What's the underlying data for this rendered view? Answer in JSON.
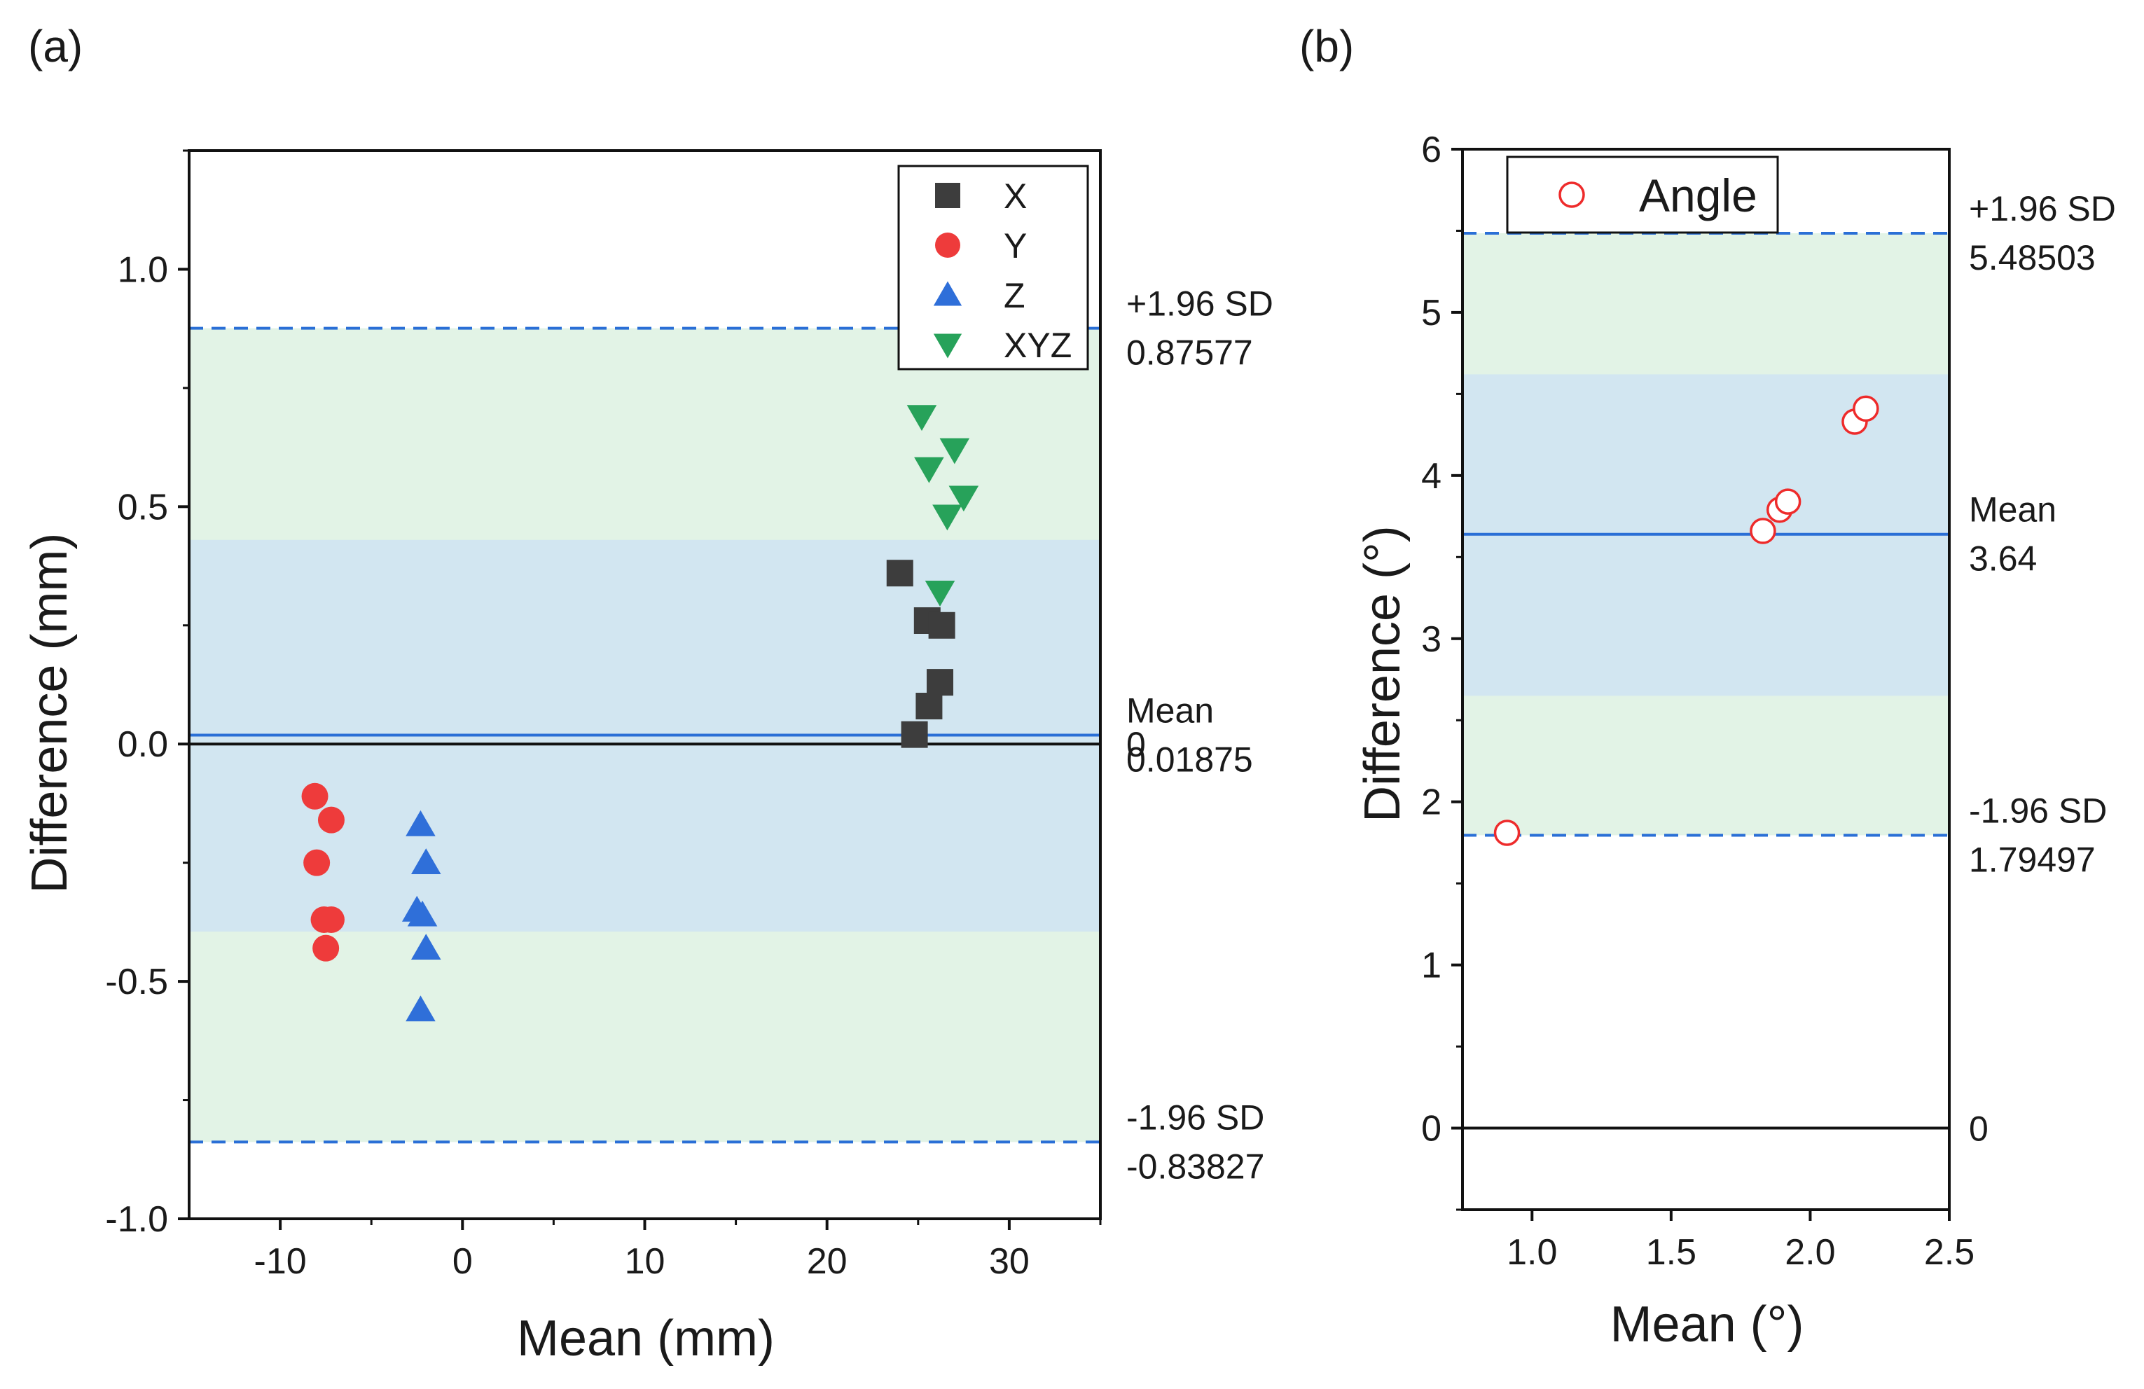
{
  "chart_data": [
    {
      "panel_label": "(a)",
      "type": "scatter",
      "chart_kind": "Bland-Altman",
      "xlabel": "Mean (mm)",
      "ylabel": "Difference (mm)",
      "xlim": [
        -15,
        35
      ],
      "ylim": [
        -1.0,
        1.25
      ],
      "xticks": [
        -10,
        0,
        10,
        20,
        30
      ],
      "xtick_labels": [
        "-10",
        "0",
        "10",
        "20",
        "30"
      ],
      "yticks": [
        -1.0,
        -0.5,
        0.0,
        0.5,
        1.0
      ],
      "ytick_labels": [
        "-1.0",
        "-0.5",
        "0.0",
        "0.5",
        "1.0"
      ],
      "bands": [
        {
          "name": "loa-band",
          "from": -0.83827,
          "to": 0.87577,
          "color": "#e2f3e6"
        },
        {
          "name": "ci-band",
          "from": -0.395,
          "to": 0.43,
          "color": "#d2e6f1"
        }
      ],
      "reference_lines": [
        {
          "name": "upper-loa",
          "value": 0.87577,
          "style": "dashed",
          "color": "#2a6fd6",
          "label_top": "+1.96 SD",
          "label_bottom": "0.87577"
        },
        {
          "name": "mean",
          "value": 0.01875,
          "style": "solid",
          "color": "#2a6fd6",
          "label_top": "Mean",
          "label_bottom": "0.01875"
        },
        {
          "name": "zero",
          "value": 0,
          "style": "solid",
          "color": "#111111",
          "label_top": "",
          "label_bottom": "0"
        },
        {
          "name": "lower-loa",
          "value": -0.83827,
          "style": "dashed",
          "color": "#2a6fd6",
          "label_top": "-1.96 SD",
          "label_bottom": "-0.83827"
        }
      ],
      "legend": {
        "position": "top-right"
      },
      "series": [
        {
          "name": "X",
          "marker": "square",
          "color": "#3d3d3d",
          "points": [
            [
              24,
              0.36
            ],
            [
              25.5,
              0.26
            ],
            [
              26.3,
              0.25
            ],
            [
              26.2,
              0.13
            ],
            [
              25.6,
              0.08
            ],
            [
              24.8,
              0.02
            ]
          ]
        },
        {
          "name": "Y",
          "marker": "circle",
          "color": "#ee3b3b",
          "points": [
            [
              -8.1,
              -0.11
            ],
            [
              -7.2,
              -0.16
            ],
            [
              -8,
              -0.25
            ],
            [
              -7.6,
              -0.37
            ],
            [
              -7.2,
              -0.37
            ],
            [
              -7.5,
              -0.43
            ]
          ]
        },
        {
          "name": "Z",
          "marker": "triangle-up",
          "color": "#2f6fd9",
          "points": [
            [
              -2.3,
              -0.17
            ],
            [
              -2.0,
              -0.25
            ],
            [
              -2.5,
              -0.35
            ],
            [
              -2.2,
              -0.36
            ],
            [
              -2.0,
              -0.43
            ],
            [
              -2.3,
              -0.56
            ]
          ]
        },
        {
          "name": "XYZ",
          "marker": "triangle-down",
          "color": "#27a25a",
          "points": [
            [
              25.2,
              0.69
            ],
            [
              27.0,
              0.62
            ],
            [
              25.6,
              0.58
            ],
            [
              27.5,
              0.52
            ],
            [
              26.6,
              0.48
            ],
            [
              26.2,
              0.32
            ]
          ]
        }
      ]
    },
    {
      "panel_label": "(b)",
      "type": "scatter",
      "chart_kind": "Bland-Altman",
      "xlabel": "Mean (°)",
      "ylabel": "Difference (°)",
      "xlim": [
        0.75,
        2.5
      ],
      "ylim": [
        -0.5,
        6.0
      ],
      "xticks": [
        1.0,
        1.5,
        2.0,
        2.5
      ],
      "xtick_labels": [
        "1.0",
        "1.5",
        "2.0",
        "2.5"
      ],
      "yticks": [
        0,
        1,
        2,
        3,
        4,
        5,
        6
      ],
      "ytick_labels": [
        "0",
        "1",
        "2",
        "3",
        "4",
        "5",
        "6"
      ],
      "bands": [
        {
          "name": "loa-band",
          "from": 1.79497,
          "to": 5.48503,
          "color": "#e2f3e6"
        },
        {
          "name": "ci-band",
          "from": 2.65,
          "to": 4.62,
          "color": "#d2e6f1"
        }
      ],
      "reference_lines": [
        {
          "name": "upper-loa",
          "value": 5.48503,
          "style": "dashed",
          "color": "#2a6fd6",
          "label_top": "+1.96 SD",
          "label_bottom": "5.48503"
        },
        {
          "name": "mean",
          "value": 3.64,
          "style": "solid",
          "color": "#2a6fd6",
          "label_top": "Mean",
          "label_bottom": "3.64"
        },
        {
          "name": "zero",
          "value": 0,
          "style": "solid",
          "color": "#111111",
          "label_top": "",
          "label_bottom": "0"
        },
        {
          "name": "lower-loa",
          "value": 1.79497,
          "style": "dashed",
          "color": "#2a6fd6",
          "label_top": "-1.96 SD",
          "label_bottom": "1.79497"
        }
      ],
      "legend": {
        "position": "top-left"
      },
      "series": [
        {
          "name": "Angle",
          "marker": "open-circle",
          "color": "#ee2b2b",
          "points": [
            [
              0.91,
              1.81
            ],
            [
              1.83,
              3.66
            ],
            [
              1.89,
              3.79
            ],
            [
              1.92,
              3.84
            ],
            [
              2.16,
              4.33
            ],
            [
              2.2,
              4.41
            ]
          ]
        }
      ]
    }
  ]
}
